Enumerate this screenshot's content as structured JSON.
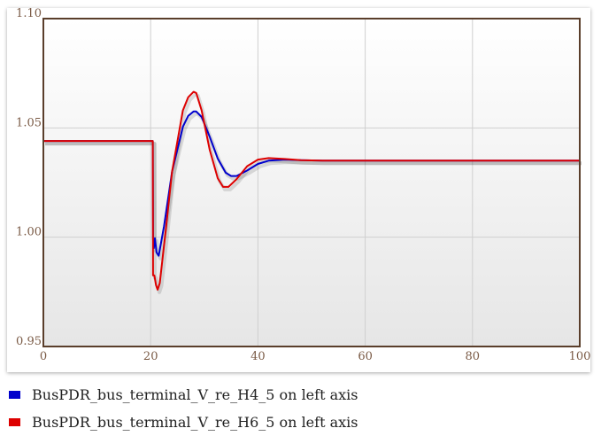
{
  "chart_data": {
    "type": "line",
    "title": "",
    "xlabel": "",
    "ylabel": "",
    "xlim": [
      0,
      100
    ],
    "ylim": [
      0.95,
      1.1
    ],
    "x_ticks": [
      0,
      20,
      40,
      60,
      80,
      100
    ],
    "y_ticks": [
      0.95,
      1.0,
      1.05,
      1.1
    ],
    "x_tick_labels": [
      "0",
      "20",
      "40",
      "60",
      "80",
      "100"
    ],
    "y_tick_labels": [
      "0.95",
      "1.00",
      "1.05",
      "1.10"
    ],
    "grid": true,
    "legend_position": "bottom",
    "series": [
      {
        "name": "BusPDR_bus_terminal_V_re_H4_5 on left axis",
        "color": "#0000cc",
        "x": [
          0,
          20.4,
          20.45,
          20.6,
          20.8,
          21.1,
          21.5,
          22.5,
          24,
          26,
          27,
          28,
          28.5,
          29.5,
          31,
          32.5,
          34,
          35,
          36,
          38,
          40,
          42,
          45,
          48,
          52,
          60,
          100
        ],
        "y": [
          1.044,
          1.044,
          0.999,
          0.995,
          0.9995,
          0.993,
          0.9915,
          1.005,
          1.03,
          1.0505,
          1.0555,
          1.0575,
          1.0575,
          1.055,
          1.046,
          1.036,
          1.0295,
          1.028,
          1.028,
          1.0305,
          1.0335,
          1.035,
          1.0355,
          1.0352,
          1.035,
          1.035,
          1.035
        ]
      },
      {
        "name": "BusPDR_bus_terminal_V_re_H6_5 on left axis",
        "color": "#dd0000",
        "x": [
          0,
          20.4,
          20.45,
          20.7,
          21.0,
          21.3,
          21.7,
          22.8,
          24,
          26,
          27,
          28,
          28.5,
          29.5,
          31,
          32.5,
          33.5,
          34.5,
          36,
          38,
          40,
          42,
          45,
          48,
          52,
          60,
          100
        ],
        "y": [
          1.044,
          1.044,
          0.9825,
          0.9825,
          0.978,
          0.976,
          0.979,
          1.003,
          1.03,
          1.058,
          1.064,
          1.0665,
          1.066,
          1.058,
          1.04,
          1.027,
          1.023,
          1.023,
          1.0265,
          1.0325,
          1.0355,
          1.0362,
          1.0358,
          1.0352,
          1.035,
          1.035,
          1.035
        ]
      }
    ]
  }
}
